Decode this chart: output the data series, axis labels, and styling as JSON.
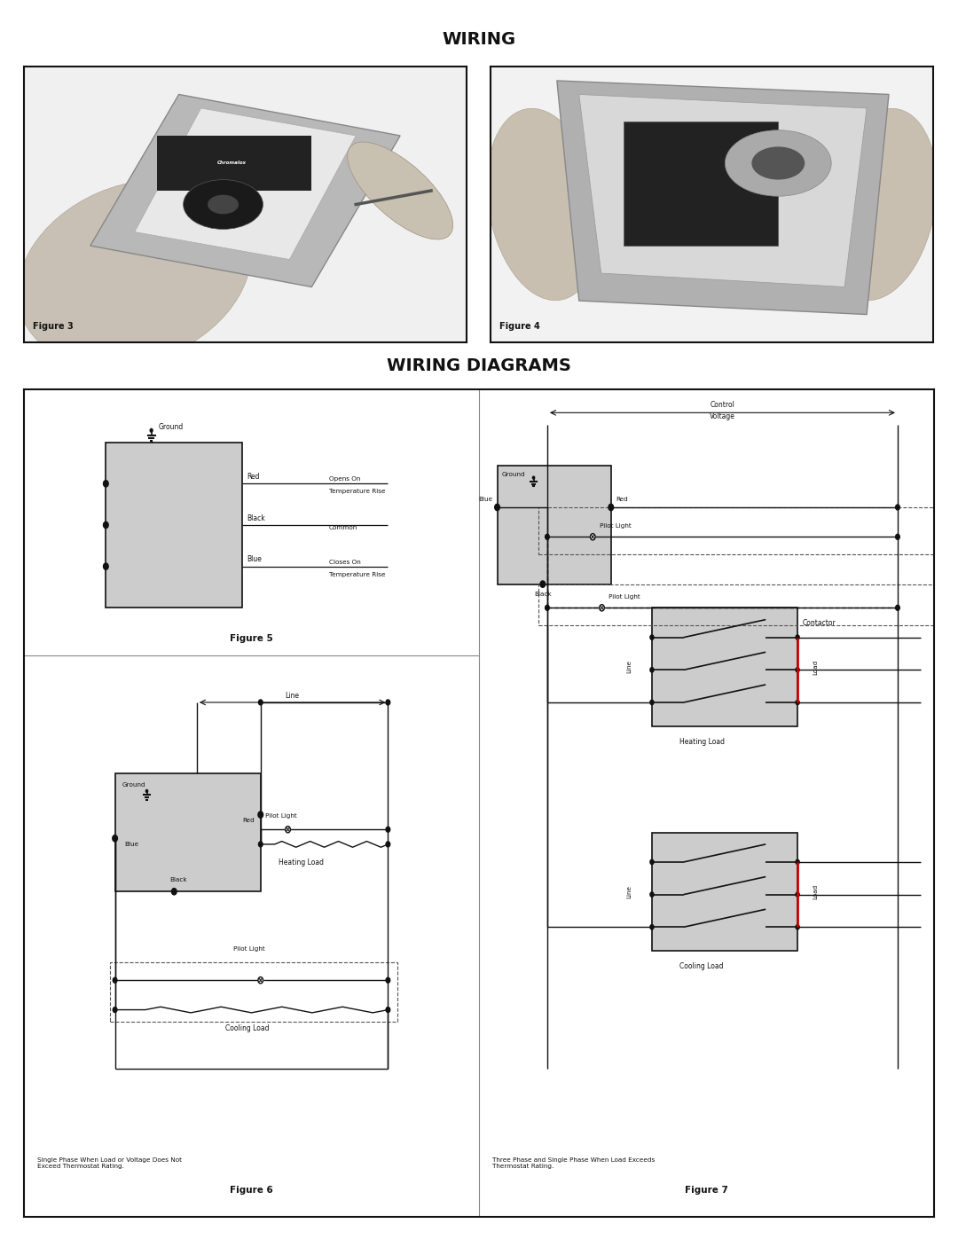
{
  "title_wiring": "WIRING",
  "title_diagrams": "WIRING DIAGRAMS",
  "title_bg": "#e0e0e0",
  "page_bg": "#ffffff",
  "border_color": "#000000",
  "fig3_label": "Figure 3",
  "fig4_label": "Figure 4",
  "fig5_label": "Figure 5",
  "fig6_label": "Figure 6",
  "fig7_label": "Figure 7",
  "fig6_caption": "Single Phase When Load or Voltage Does Not\nExceed Thermostat Rating.",
  "fig7_caption": "Three Phase and Single Phase When Load Exceeds\nThermostat Rating.",
  "gray_box_color": "#c8c8c8",
  "line_color": "#111111",
  "text_color": "#111111",
  "red_line_color": "#cc0000",
  "photo_bg": "#d8d8d8"
}
